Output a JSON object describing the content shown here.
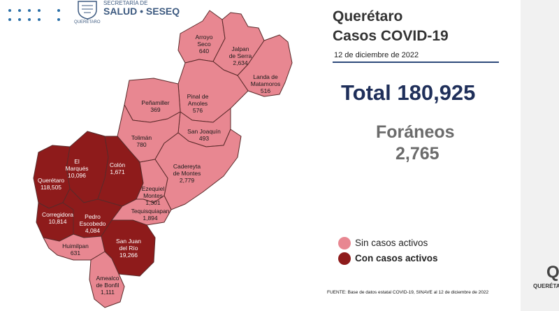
{
  "header": {
    "org_line1": "SECRETARÍA DE",
    "org_line2": "SALUD • SESEQ",
    "org_line3": "QUERÉTARO"
  },
  "title": {
    "state": "Querétaro",
    "subject": "Casos COVID-19",
    "date": "12 de diciembre de 2022"
  },
  "summary": {
    "total_label": "Total 180,925",
    "foraneos_label": "Foráneos",
    "foraneos_value": "2,765"
  },
  "legend": {
    "inactive_label": "Sin casos activos",
    "active_label": "Con casos activos"
  },
  "colors": {
    "inactive": "#e88791",
    "active": "#8e1b1b",
    "title_rule": "#2e4a7a"
  },
  "municipalities": [
    {
      "name": "Arroyo Seco",
      "line1": "Arroyo",
      "line2": "Seco",
      "cases": "640",
      "active": false
    },
    {
      "name": "Jalpan de Serra",
      "line1": "Jalpan",
      "line2": "de Serra",
      "cases": "2,634",
      "active": false
    },
    {
      "name": "Landa de Matamoros",
      "line1": "Landa de",
      "line2": "Matamoros",
      "cases": "516",
      "active": false
    },
    {
      "name": "Pinal de Amoles",
      "line1": "Pinal de",
      "line2": "Amoles",
      "cases": "576",
      "active": false
    },
    {
      "name": "Peñamiller",
      "line1": "Peñamiller",
      "line2": "",
      "cases": "369",
      "active": false
    },
    {
      "name": "San Joaquín",
      "line1": "San Joaquín",
      "line2": "",
      "cases": "493",
      "active": false
    },
    {
      "name": "Tolimán",
      "line1": "Tolimán",
      "line2": "",
      "cases": "780",
      "active": false
    },
    {
      "name": "Cadereyta de Montes",
      "line1": "Cadereyta",
      "line2": "de Montes",
      "cases": "2,779",
      "active": false
    },
    {
      "name": "El Marqués",
      "line1": "El",
      "line2": "Marqués",
      "cases": "10,096",
      "active": true
    },
    {
      "name": "Colón",
      "line1": "Colón",
      "line2": "",
      "cases": "1,671",
      "active": true
    },
    {
      "name": "Querétaro",
      "line1": "Querétaro",
      "line2": "",
      "cases": "118,505",
      "active": true
    },
    {
      "name": "Ezequiel Montes",
      "line1": "Ezequiel",
      "line2": "Montes",
      "cases": "1,301",
      "active": false
    },
    {
      "name": "Corregidora",
      "line1": "Corregidora",
      "line2": "",
      "cases": "10,814",
      "active": true
    },
    {
      "name": "Pedro Escobedo",
      "line1": "Pedro",
      "line2": "Escobedo",
      "cases": "4,084",
      "active": true
    },
    {
      "name": "Tequisquiapan",
      "line1": "Tequisquiapan",
      "line2": "",
      "cases": "1,894",
      "active": false
    },
    {
      "name": "San Juan del Río",
      "line1": "San Juan",
      "line2": "del Río",
      "cases": "19,266",
      "active": true
    },
    {
      "name": "Huimilpan",
      "line1": "Huimilpan",
      "line2": "",
      "cases": "631",
      "active": false
    },
    {
      "name": "Amealco de Bonfil",
      "line1": "Amealco",
      "line2": "de Bonfil",
      "cases": "1,111",
      "active": false
    }
  ],
  "footer": {
    "source": "FUENTE: Base de datos estatal COVID-19, SINAVE al 12 de diciembre de 2022"
  },
  "corner_logo": {
    "letter": "Q",
    "text": "QUERÉTARO"
  }
}
